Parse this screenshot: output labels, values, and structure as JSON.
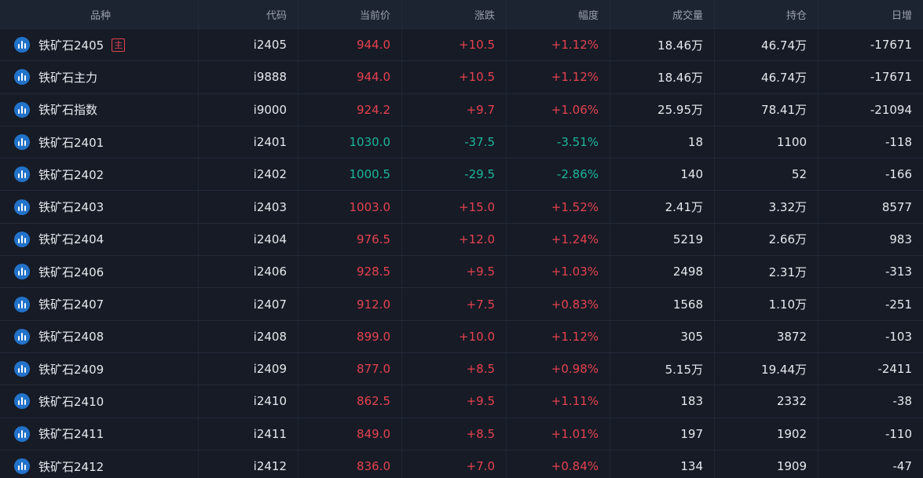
{
  "columns": {
    "name": "品种",
    "code": "代码",
    "price": "当前价",
    "change": "涨跌",
    "pct": "幅度",
    "volume": "成交量",
    "open_interest": "持仓",
    "daily_change": "日增"
  },
  "icon_name": "bar-chart-icon",
  "main_tag_label": "主",
  "colors": {
    "up": "#e4424f",
    "down": "#1cb59a",
    "icon_badge": "#2272c9",
    "background": "#161b26"
  },
  "rows": [
    {
      "name": "铁矿石2405",
      "main": true,
      "code": "i2405",
      "price": "944.0",
      "change": "+10.5",
      "pct": "+1.12%",
      "volume": "18.46万",
      "oi": "46.74万",
      "daily": "-17671",
      "dir": "up"
    },
    {
      "name": "铁矿石主力",
      "code": "i9888",
      "price": "944.0",
      "change": "+10.5",
      "pct": "+1.12%",
      "volume": "18.46万",
      "oi": "46.74万",
      "daily": "-17671",
      "dir": "up"
    },
    {
      "name": "铁矿石指数",
      "code": "i9000",
      "price": "924.2",
      "change": "+9.7",
      "pct": "+1.06%",
      "volume": "25.95万",
      "oi": "78.41万",
      "daily": "-21094",
      "dir": "up"
    },
    {
      "name": "铁矿石2401",
      "code": "i2401",
      "price": "1030.0",
      "change": "-37.5",
      "pct": "-3.51%",
      "volume": "18",
      "oi": "1100",
      "daily": "-118",
      "dir": "down"
    },
    {
      "name": "铁矿石2402",
      "code": "i2402",
      "price": "1000.5",
      "change": "-29.5",
      "pct": "-2.86%",
      "volume": "140",
      "oi": "52",
      "daily": "-166",
      "dir": "down"
    },
    {
      "name": "铁矿石2403",
      "code": "i2403",
      "price": "1003.0",
      "change": "+15.0",
      "pct": "+1.52%",
      "volume": "2.41万",
      "oi": "3.32万",
      "daily": "8577",
      "dir": "up"
    },
    {
      "name": "铁矿石2404",
      "code": "i2404",
      "price": "976.5",
      "change": "+12.0",
      "pct": "+1.24%",
      "volume": "5219",
      "oi": "2.66万",
      "daily": "983",
      "dir": "up"
    },
    {
      "name": "铁矿石2406",
      "code": "i2406",
      "price": "928.5",
      "change": "+9.5",
      "pct": "+1.03%",
      "volume": "2498",
      "oi": "2.31万",
      "daily": "-313",
      "dir": "up"
    },
    {
      "name": "铁矿石2407",
      "code": "i2407",
      "price": "912.0",
      "change": "+7.5",
      "pct": "+0.83%",
      "volume": "1568",
      "oi": "1.10万",
      "daily": "-251",
      "dir": "up"
    },
    {
      "name": "铁矿石2408",
      "code": "i2408",
      "price": "899.0",
      "change": "+10.0",
      "pct": "+1.12%",
      "volume": "305",
      "oi": "3872",
      "daily": "-103",
      "dir": "up"
    },
    {
      "name": "铁矿石2409",
      "code": "i2409",
      "price": "877.0",
      "change": "+8.5",
      "pct": "+0.98%",
      "volume": "5.15万",
      "oi": "19.44万",
      "daily": "-2411",
      "dir": "up"
    },
    {
      "name": "铁矿石2410",
      "code": "i2410",
      "price": "862.5",
      "change": "+9.5",
      "pct": "+1.11%",
      "volume": "183",
      "oi": "2332",
      "daily": "-38",
      "dir": "up"
    },
    {
      "name": "铁矿石2411",
      "code": "i2411",
      "price": "849.0",
      "change": "+8.5",
      "pct": "+1.01%",
      "volume": "197",
      "oi": "1902",
      "daily": "-110",
      "dir": "up"
    },
    {
      "name": "铁矿石2412",
      "code": "i2412",
      "price": "836.0",
      "change": "+7.0",
      "pct": "+0.84%",
      "volume": "134",
      "oi": "1909",
      "daily": "-47",
      "dir": "up"
    }
  ]
}
